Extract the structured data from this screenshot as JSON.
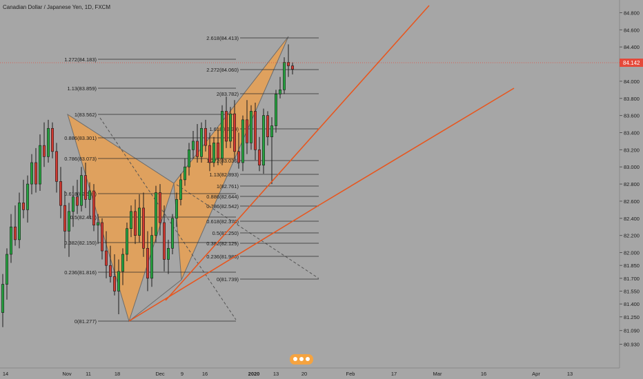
{
  "chart_data": {
    "type": "candlestick",
    "title": "Canadian Dollar / Japanese Yen, 1D, FXCM",
    "current_price": "84.142",
    "y_range": [
      80.83,
      84.9
    ],
    "y_ticks": [
      "84.800",
      "84.600",
      "84.400",
      "84.200",
      "84.000",
      "83.800",
      "83.600",
      "83.400",
      "83.200",
      "83.000",
      "82.800",
      "82.600",
      "82.400",
      "82.200",
      "82.000",
      "81.850",
      "81.700",
      "81.550",
      "81.400",
      "81.250",
      "81.090",
      "80.930"
    ],
    "x_ticks": [
      "14",
      "Nov",
      "11",
      "18",
      "Dec",
      "9",
      "16",
      "2020",
      "13",
      "20",
      "Feb",
      "17",
      "Mar",
      "16",
      "Apr",
      "13"
    ],
    "fib_left": [
      "1.272(84.183)",
      "1.13(83.859)",
      "1(83.562)",
      "0.886(83.301)",
      "0.786(83.073)",
      "0.618(82.689)",
      "0.5(82.419)",
      "0.382(82.150)",
      "0.236(81.816)",
      "0(81.277)"
    ],
    "fib_right": [
      "2.618(84.413)",
      "2.272(84.060)",
      "2(83.782)",
      "1.618(83.39)",
      "1.272(83.036)",
      "1.13(82.893)",
      "1(82.761)",
      "0.886(82.644)",
      "0.786(82.542)",
      "0.618(82.370)",
      "0.5(82.250)",
      "0.382(82.129)",
      "0.236(81.980)",
      "0(81.739)"
    ],
    "candles": [
      {
        "o": 81.3,
        "h": 81.75,
        "l": 81.13,
        "c": 81.63
      },
      {
        "o": 81.63,
        "h": 82.05,
        "l": 81.45,
        "c": 81.98
      },
      {
        "o": 81.98,
        "h": 82.45,
        "l": 81.88,
        "c": 82.3
      },
      {
        "o": 82.3,
        "h": 82.55,
        "l": 82.08,
        "c": 82.15
      },
      {
        "o": 82.15,
        "h": 82.7,
        "l": 82.05,
        "c": 82.58
      },
      {
        "o": 82.58,
        "h": 82.85,
        "l": 82.4,
        "c": 82.5
      },
      {
        "o": 82.5,
        "h": 82.9,
        "l": 82.35,
        "c": 82.8
      },
      {
        "o": 82.8,
        "h": 83.15,
        "l": 82.68,
        "c": 83.05
      },
      {
        "o": 83.05,
        "h": 83.22,
        "l": 82.7,
        "c": 82.8
      },
      {
        "o": 82.8,
        "h": 83.38,
        "l": 82.72,
        "c": 83.25
      },
      {
        "o": 83.25,
        "h": 83.52,
        "l": 83.0,
        "c": 83.12
      },
      {
        "o": 83.12,
        "h": 83.55,
        "l": 83.05,
        "c": 83.45
      },
      {
        "o": 83.45,
        "h": 83.52,
        "l": 83.1,
        "c": 83.18
      },
      {
        "o": 83.18,
        "h": 83.28,
        "l": 82.7,
        "c": 82.83
      },
      {
        "o": 82.83,
        "h": 83.0,
        "l": 82.4,
        "c": 82.55
      },
      {
        "o": 82.55,
        "h": 82.72,
        "l": 82.05,
        "c": 82.25
      },
      {
        "o": 82.25,
        "h": 82.58,
        "l": 81.95,
        "c": 82.48
      },
      {
        "o": 82.48,
        "h": 82.78,
        "l": 82.3,
        "c": 82.65
      },
      {
        "o": 82.65,
        "h": 82.85,
        "l": 82.45,
        "c": 82.55
      },
      {
        "o": 82.55,
        "h": 83.0,
        "l": 82.48,
        "c": 82.9
      },
      {
        "o": 82.9,
        "h": 83.05,
        "l": 82.52,
        "c": 82.62
      },
      {
        "o": 82.62,
        "h": 82.82,
        "l": 82.4,
        "c": 82.72
      },
      {
        "o": 82.72,
        "h": 82.8,
        "l": 82.25,
        "c": 82.32
      },
      {
        "o": 82.32,
        "h": 82.45,
        "l": 82.1,
        "c": 82.35
      },
      {
        "o": 82.35,
        "h": 82.4,
        "l": 81.92,
        "c": 82.02
      },
      {
        "o": 82.02,
        "h": 82.25,
        "l": 81.7,
        "c": 81.85
      },
      {
        "o": 81.85,
        "h": 82.08,
        "l": 81.65,
        "c": 81.72
      },
      {
        "o": 81.72,
        "h": 81.98,
        "l": 81.5,
        "c": 81.55
      },
      {
        "o": 81.55,
        "h": 81.92,
        "l": 81.28,
        "c": 81.78
      },
      {
        "o": 81.78,
        "h": 82.05,
        "l": 81.62,
        "c": 81.98
      },
      {
        "o": 81.98,
        "h": 82.35,
        "l": 81.9,
        "c": 82.28
      },
      {
        "o": 82.28,
        "h": 82.55,
        "l": 82.18,
        "c": 82.48
      },
      {
        "o": 82.48,
        "h": 82.62,
        "l": 82.1,
        "c": 82.2
      },
      {
        "o": 82.2,
        "h": 82.68,
        "l": 82.12,
        "c": 82.52
      },
      {
        "o": 82.52,
        "h": 82.7,
        "l": 81.95,
        "c": 82.05
      },
      {
        "o": 82.05,
        "h": 82.25,
        "l": 81.55,
        "c": 81.7
      },
      {
        "o": 81.7,
        "h": 82.3,
        "l": 81.6,
        "c": 82.2
      },
      {
        "o": 82.2,
        "h": 82.78,
        "l": 82.12,
        "c": 82.7
      },
      {
        "o": 82.7,
        "h": 82.8,
        "l": 82.2,
        "c": 82.35
      },
      {
        "o": 82.35,
        "h": 82.55,
        "l": 81.78,
        "c": 81.92
      },
      {
        "o": 81.92,
        "h": 82.15,
        "l": 81.75,
        "c": 82.05
      },
      {
        "o": 82.05,
        "h": 82.45,
        "l": 81.98,
        "c": 82.4
      },
      {
        "o": 82.4,
        "h": 82.7,
        "l": 82.3,
        "c": 82.62
      },
      {
        "o": 82.62,
        "h": 82.92,
        "l": 82.55,
        "c": 82.85
      },
      {
        "o": 82.85,
        "h": 83.1,
        "l": 82.78,
        "c": 83.0
      },
      {
        "o": 83.0,
        "h": 83.28,
        "l": 82.9,
        "c": 83.2
      },
      {
        "o": 83.2,
        "h": 83.42,
        "l": 83.1,
        "c": 83.3
      },
      {
        "o": 83.3,
        "h": 83.5,
        "l": 83.05,
        "c": 83.12
      },
      {
        "o": 83.12,
        "h": 83.52,
        "l": 83.05,
        "c": 83.45
      },
      {
        "o": 83.45,
        "h": 83.55,
        "l": 83.18,
        "c": 83.25
      },
      {
        "o": 83.25,
        "h": 83.4,
        "l": 82.95,
        "c": 83.05
      },
      {
        "o": 83.05,
        "h": 83.35,
        "l": 83.0,
        "c": 83.28
      },
      {
        "o": 83.28,
        "h": 83.45,
        "l": 83.02,
        "c": 83.1
      },
      {
        "o": 83.1,
        "h": 83.72,
        "l": 83.02,
        "c": 83.65
      },
      {
        "o": 83.65,
        "h": 83.82,
        "l": 83.22,
        "c": 83.3
      },
      {
        "o": 83.3,
        "h": 83.7,
        "l": 83.22,
        "c": 83.62
      },
      {
        "o": 83.62,
        "h": 83.78,
        "l": 83.1,
        "c": 83.18
      },
      {
        "o": 83.18,
        "h": 83.4,
        "l": 82.98,
        "c": 83.05
      },
      {
        "o": 83.05,
        "h": 83.6,
        "l": 82.95,
        "c": 83.55
      },
      {
        "o": 83.55,
        "h": 83.78,
        "l": 83.15,
        "c": 83.28
      },
      {
        "o": 83.28,
        "h": 83.72,
        "l": 83.2,
        "c": 83.65
      },
      {
        "o": 83.65,
        "h": 83.75,
        "l": 83.08,
        "c": 83.2
      },
      {
        "o": 83.2,
        "h": 83.35,
        "l": 82.95,
        "c": 83.02
      },
      {
        "o": 83.02,
        "h": 83.68,
        "l": 82.92,
        "c": 83.6
      },
      {
        "o": 83.6,
        "h": 83.65,
        "l": 83.25,
        "c": 83.35
      },
      {
        "o": 83.35,
        "h": 83.58,
        "l": 82.8,
        "c": 83.48
      },
      {
        "o": 83.48,
        "h": 83.9,
        "l": 83.4,
        "c": 83.85
      },
      {
        "o": 83.85,
        "h": 84.05,
        "l": 83.8,
        "c": 83.9
      },
      {
        "o": 83.9,
        "h": 84.28,
        "l": 83.85,
        "c": 84.22
      },
      {
        "o": 84.22,
        "h": 84.43,
        "l": 84.05,
        "c": 84.18
      },
      {
        "o": 84.18,
        "h": 84.22,
        "l": 84.08,
        "c": 84.14
      }
    ]
  },
  "colors": {
    "background": "#a6a6a6",
    "bull": "#27a341",
    "bear": "#d03a32",
    "pattern_fill": "#f0a04a",
    "pattern_stroke": "#6b6b6b",
    "trend": "#e8561e",
    "price_badge": "#e5493a"
  }
}
